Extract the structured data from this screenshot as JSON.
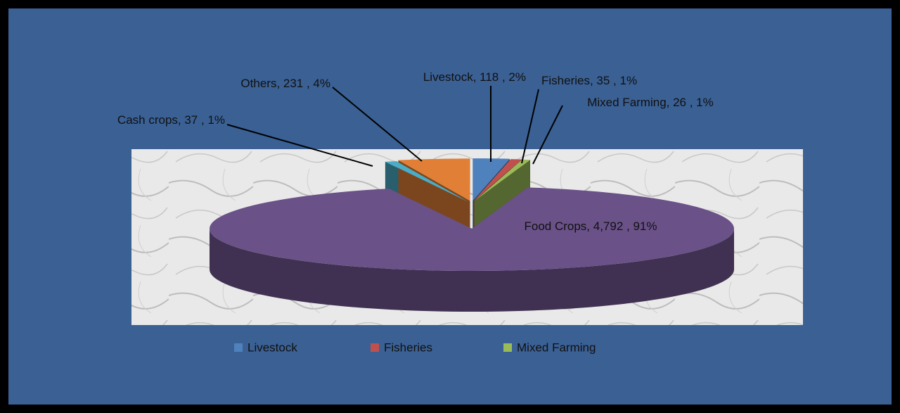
{
  "chart_data": {
    "type": "pie",
    "categories": [
      "Livestock",
      "Fisheries",
      "Mixed Farming",
      "Food Crops",
      "Cash crops",
      "Others"
    ],
    "values": [
      118,
      35,
      26,
      4792,
      37,
      231
    ],
    "value_labels": [
      "Livestock, 118 , 2%",
      "Fisheries, 35 , 1%",
      "Mixed Farming, 26 , 1%",
      "Food Crops, 4,792 , 91%",
      "Cash crops, 37 , 1%",
      "Others, 231 , 4%"
    ],
    "colors": [
      "#4f81bd",
      "#c0504d",
      "#9bbb59",
      "#6a5188",
      "#4bacc6",
      "#e07f35"
    ],
    "legend": [
      "Livestock",
      "Fisheries",
      "Mixed Farming"
    ]
  }
}
